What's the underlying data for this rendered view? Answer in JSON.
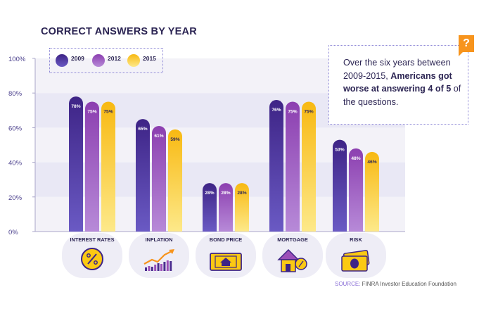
{
  "chart_data": {
    "type": "bar",
    "title": "CORRECT ANSWERS BY YEAR",
    "categories": [
      "INTEREST RATES",
      "INFLATION",
      "BOND PRICE",
      "MORTGAGE",
      "RISK"
    ],
    "series": [
      {
        "name": "2009",
        "values": [
          78,
          65,
          28,
          76,
          53
        ]
      },
      {
        "name": "2012",
        "values": [
          75,
          61,
          28,
          75,
          48
        ]
      },
      {
        "name": "2015",
        "values": [
          75,
          59,
          28,
          75,
          46
        ]
      }
    ],
    "ylim": [
      0,
      100
    ],
    "yticks": [
      "0%",
      "20%",
      "40%",
      "60%",
      "80%",
      "100%"
    ],
    "bar_labels": [
      [
        "78%",
        "75%",
        "75%"
      ],
      [
        "65%",
        "61%",
        "59%"
      ],
      [
        "28%",
        "28%",
        "28%"
      ],
      [
        "76%",
        "75%",
        "75%"
      ],
      [
        "53%",
        "48%",
        "46%"
      ]
    ],
    "legend_position": "top-left",
    "colors": [
      "#4b2d8f",
      "#9b4fb8",
      "#fbc913"
    ]
  },
  "category_icons": [
    "percent-coin-icon",
    "rising-chart-icon",
    "banknote-icon",
    "house-percent-icon",
    "money-stack-icon"
  ],
  "callout": {
    "text_before": "Over the six years between 2009-2015, ",
    "text_bold": "Americans got worse at answering 4 of 5",
    "text_after": " of the questions.",
    "badge": "?"
  },
  "source": {
    "label": "SOURCE:",
    "text": " FINRA Investor Education Foundation"
  }
}
